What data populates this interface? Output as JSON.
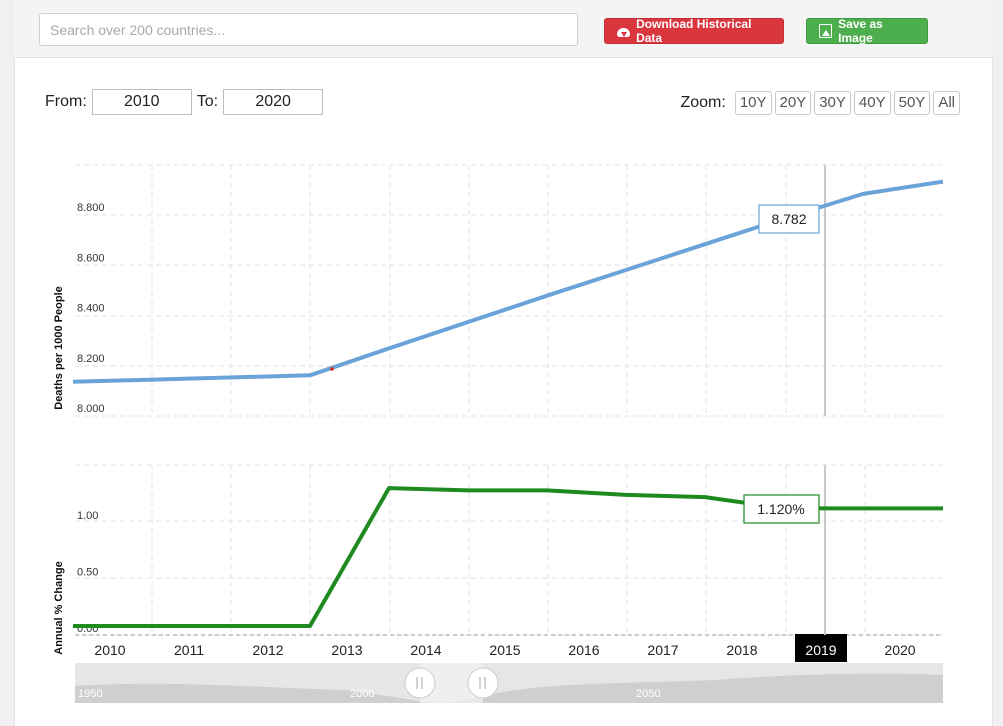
{
  "search": {
    "placeholder": "Search over 200 countries..."
  },
  "toolbar": {
    "download_label": "Download Historical Data",
    "save_label": "Save as Image"
  },
  "range": {
    "from_label": "From:",
    "from_value": "2010",
    "to_label": "To:",
    "to_value": "2020"
  },
  "zoom": {
    "label": "Zoom:",
    "options": [
      "10Y",
      "20Y",
      "30Y",
      "40Y",
      "50Y",
      "All"
    ]
  },
  "colors": {
    "death_line": "#6aa3d8",
    "change_line": "#1f8a1f",
    "download_button": "#d9363e",
    "save_button": "#4cae4c"
  },
  "chart_data": [
    {
      "type": "line",
      "ylabel": "Deaths per 1000 People",
      "x": [
        2010,
        2013,
        2014,
        2015,
        2016,
        2017,
        2018,
        2019,
        2020
      ],
      "series": [
        {
          "values": [
            8.132,
            8.158,
            8.265,
            8.37,
            8.475,
            8.577,
            8.68,
            8.782,
            8.88
          ]
        }
      ],
      "yticks": [
        "8.000",
        "8.200",
        "8.400",
        "8.600",
        "8.800"
      ],
      "ylim": [
        8.0,
        9.0
      ],
      "tooltip": {
        "x": 2019,
        "label": "8.782"
      }
    },
    {
      "type": "line",
      "ylabel": "Annual % Change",
      "x": [
        2010,
        2013,
        2014,
        2015,
        2016,
        2017,
        2018,
        2019,
        2020
      ],
      "series": [
        {
          "values": [
            0.08,
            0.08,
            1.3,
            1.28,
            1.28,
            1.24,
            1.22,
            1.12,
            1.12
          ]
        }
      ],
      "yticks": [
        "0.00",
        "0.50",
        "1.00"
      ],
      "ylim": [
        0.0,
        1.5
      ],
      "tooltip": {
        "x": 2019,
        "label": "1.120%"
      }
    }
  ],
  "x_axis": {
    "ticks": [
      "2010",
      "2011",
      "2012",
      "2013",
      "2014",
      "2015",
      "2016",
      "2017",
      "2018",
      "2019",
      "2020"
    ],
    "highlighted": "2019"
  },
  "navigator": {
    "labels": [
      "1950",
      "2000",
      "2050"
    ]
  }
}
